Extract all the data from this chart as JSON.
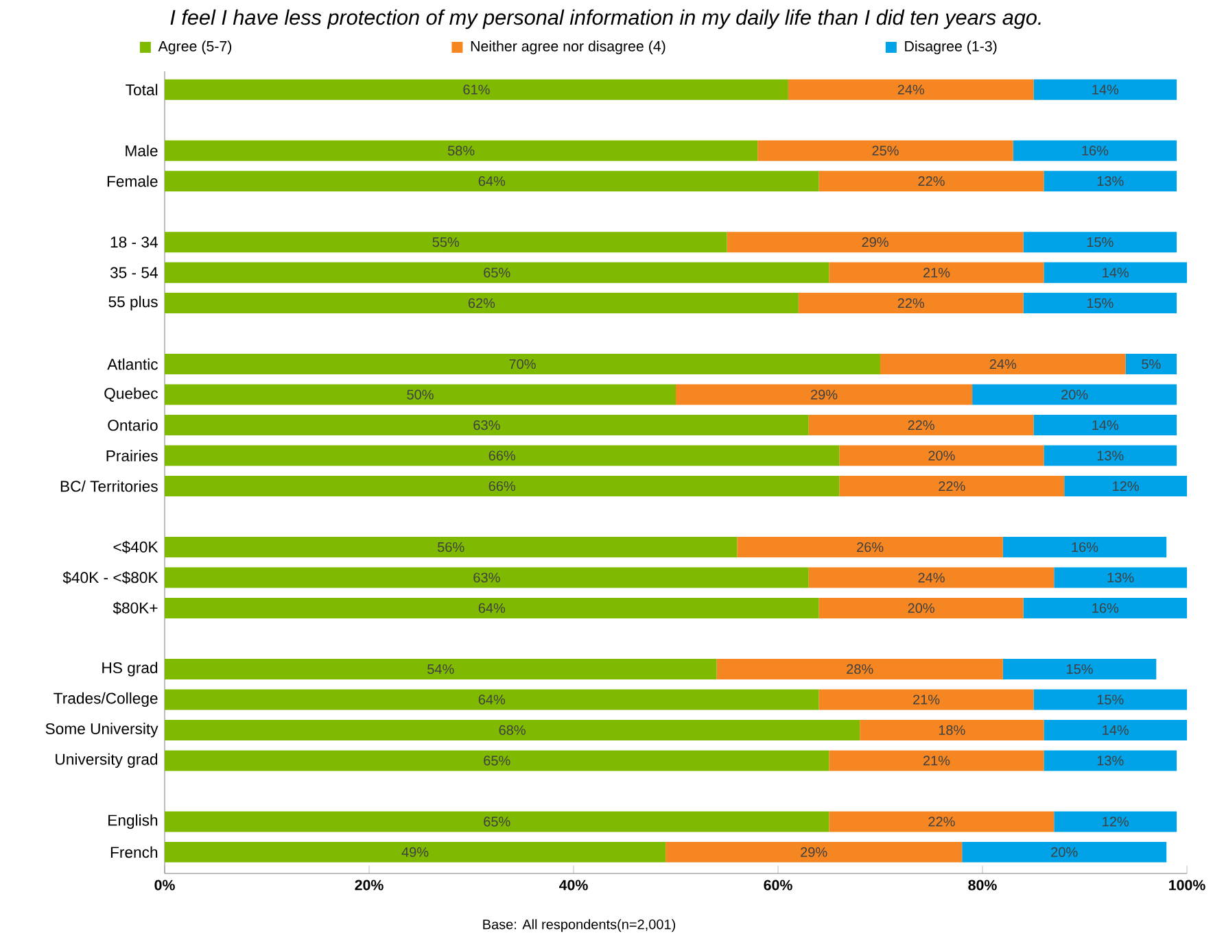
{
  "chart_data": {
    "type": "bar",
    "orientation": "horizontal",
    "stacked": true,
    "title": "I feel I have less protection of my personal information in my daily life than I did ten years ago.",
    "categories": [
      "Total",
      null,
      "Male",
      "Female",
      null,
      "18 - 34",
      "35 - 54",
      "55 plus",
      null,
      "Atlantic",
      "Quebec",
      "Ontario",
      "Prairies",
      "BC/ Territories",
      null,
      "<$40K",
      "$40K - <$80K",
      "$80K+",
      null,
      "HS grad",
      "Trades/College",
      "Some University",
      "University grad",
      null,
      "English",
      "French"
    ],
    "series": [
      {
        "name": "Agree (5-7)",
        "color": "#7fba00",
        "values": [
          61,
          null,
          58,
          64,
          null,
          55,
          65,
          62,
          null,
          70,
          50,
          63,
          66,
          66,
          null,
          56,
          63,
          64,
          null,
          54,
          64,
          68,
          65,
          null,
          65,
          49
        ],
        "value_labels": [
          "61%",
          null,
          "58%",
          "64%",
          null,
          "55%",
          "65%",
          "62%",
          null,
          "70%",
          "50%",
          "63%",
          "66%",
          "66%",
          null,
          "56%",
          "63%",
          "64%",
          null,
          "54%",
          "64%",
          "68%",
          "65%",
          null,
          "65%",
          "49%"
        ]
      },
      {
        "name": "Neither agree nor disagree (4)",
        "color": "#f68621",
        "values": [
          24,
          null,
          25,
          22,
          null,
          29,
          21,
          22,
          null,
          24,
          29,
          22,
          20,
          22,
          null,
          26,
          24,
          20,
          null,
          28,
          21,
          18,
          21,
          null,
          22,
          29
        ],
        "value_labels": [
          "24%",
          null,
          "25%",
          "22%",
          null,
          "29%",
          "21%",
          "22%",
          null,
          "24%",
          "29%",
          "22%",
          "20%",
          "22%",
          null,
          "26%",
          "24%",
          "20%",
          null,
          "28%",
          "21%",
          "18%",
          "21%",
          null,
          "22%",
          "29%"
        ]
      },
      {
        "name": "Disagree (1-3)",
        "color": "#00a2e8",
        "values": [
          14,
          null,
          16,
          13,
          null,
          15,
          14,
          15,
          null,
          5,
          20,
          14,
          13,
          12,
          null,
          16,
          13,
          16,
          null,
          15,
          15,
          14,
          13,
          null,
          12,
          20
        ],
        "value_labels": [
          "14%",
          null,
          "16%",
          "13%",
          null,
          "15%",
          "14%",
          "15%",
          null,
          "5%",
          "20%",
          "14%",
          "13%",
          "12%",
          null,
          "16%",
          "13%",
          "16%",
          null,
          "15%",
          "15%",
          "14%",
          "13%",
          null,
          "12%",
          "20%"
        ]
      }
    ],
    "xlim": [
      0,
      100
    ],
    "xticks": [
      {
        "value": 0,
        "label": "0%"
      },
      {
        "value": 20,
        "label": "20%"
      },
      {
        "value": 40,
        "label": "40%"
      },
      {
        "value": 60,
        "label": "60%"
      },
      {
        "value": 80,
        "label": "80%"
      },
      {
        "value": 100,
        "label": "100%"
      }
    ],
    "legend": "top",
    "grid": false,
    "annotations": [
      "Base: All respondents(n=2,001)"
    ]
  }
}
